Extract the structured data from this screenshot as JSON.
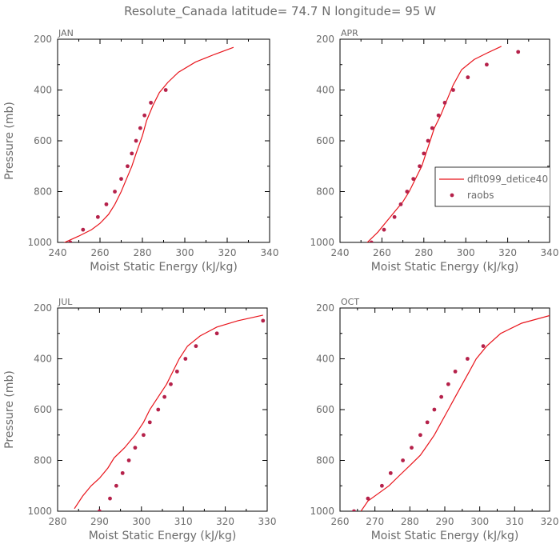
{
  "title": "Resolute_Canada  latitude= 74.7 N longitude= 95 W",
  "legend": {
    "entries": [
      "dflt099_detice40",
      "raobs"
    ],
    "placement": "right"
  },
  "colors": {
    "model": "#e8141b",
    "raobs": "#b5214a",
    "axis": "#000000",
    "text": "#6b6b6b"
  },
  "chart_data": [
    {
      "type": "line",
      "panel_label": "JAN",
      "xlabel": "Moist Static Energy (kJ/kg)",
      "ylabel": "Pressure (mb)",
      "xlim": [
        240,
        340
      ],
      "ylim": [
        1000,
        200
      ],
      "xticks": [
        240,
        260,
        280,
        300,
        320,
        340
      ],
      "yticks": [
        200,
        400,
        600,
        800,
        1000
      ],
      "series": [
        {
          "name": "dflt099_detice40",
          "style": "line",
          "points": [
            [
              242,
              1005
            ],
            [
              250,
              975
            ],
            [
              256,
              950
            ],
            [
              260,
              925
            ],
            [
              264,
              890
            ],
            [
              267,
              850
            ],
            [
              270,
              800
            ],
            [
              272,
              760
            ],
            [
              275,
              700
            ],
            [
              277,
              650
            ],
            [
              280,
              580
            ],
            [
              282,
              520
            ],
            [
              285,
              460
            ],
            [
              288,
              410
            ],
            [
              292,
              370
            ],
            [
              297,
              330
            ],
            [
              305,
              290
            ],
            [
              314,
              260
            ],
            [
              323,
              232
            ]
          ]
        },
        {
          "name": "raobs",
          "style": "markers",
          "points": [
            [
              246,
              1000
            ],
            [
              252,
              950
            ],
            [
              259,
              900
            ],
            [
              263,
              850
            ],
            [
              267,
              800
            ],
            [
              270,
              750
            ],
            [
              273,
              700
            ],
            [
              275,
              650
            ],
            [
              277,
              600
            ],
            [
              279,
              550
            ],
            [
              281,
              500
            ],
            [
              284,
              450
            ],
            [
              291,
              400
            ]
          ]
        }
      ]
    },
    {
      "type": "line",
      "panel_label": "APR",
      "xlabel": "Moist Static Energy (kJ/kg)",
      "ylabel": "",
      "xlim": [
        240,
        340
      ],
      "ylim": [
        1000,
        200
      ],
      "xticks": [
        240,
        260,
        280,
        300,
        320,
        340
      ],
      "yticks": [
        200,
        400,
        600,
        800,
        1000
      ],
      "series": [
        {
          "name": "dflt099_detice40",
          "style": "line",
          "points": [
            [
              253,
              1000
            ],
            [
              258,
              960
            ],
            [
              262,
              920
            ],
            [
              266,
              880
            ],
            [
              270,
              840
            ],
            [
              273,
              800
            ],
            [
              276,
              750
            ],
            [
              279,
              700
            ],
            [
              281,
              650
            ],
            [
              283,
              600
            ],
            [
              285,
              550
            ],
            [
              288,
              500
            ],
            [
              291,
              440
            ],
            [
              294,
              380
            ],
            [
              298,
              320
            ],
            [
              304,
              280
            ],
            [
              310,
              255
            ],
            [
              317,
              228
            ]
          ]
        },
        {
          "name": "raobs",
          "style": "markers",
          "points": [
            [
              255,
              1000
            ],
            [
              261,
              950
            ],
            [
              266,
              900
            ],
            [
              269,
              850
            ],
            [
              272,
              800
            ],
            [
              275,
              750
            ],
            [
              278,
              700
            ],
            [
              280,
              650
            ],
            [
              282,
              600
            ],
            [
              284,
              550
            ],
            [
              287,
              500
            ],
            [
              290,
              450
            ],
            [
              294,
              400
            ],
            [
              301,
              350
            ],
            [
              310,
              300
            ],
            [
              325,
              250
            ]
          ]
        }
      ]
    },
    {
      "type": "line",
      "panel_label": "JUL",
      "xlabel": "Moist Static Energy (kJ/kg)",
      "ylabel": "Pressure (mb)",
      "xlim": [
        280,
        330
      ],
      "ylim": [
        1000,
        200
      ],
      "xticks": [
        280,
        290,
        300,
        310,
        320,
        330
      ],
      "yticks": [
        200,
        400,
        600,
        800,
        1000
      ],
      "series": [
        {
          "name": "dflt099_detice40",
          "style": "line",
          "points": [
            [
              284,
              990
            ],
            [
              286,
              940
            ],
            [
              288,
              900
            ],
            [
              290,
              870
            ],
            [
              292,
              830
            ],
            [
              293.5,
              790
            ],
            [
              296,
              750
            ],
            [
              298.5,
              700
            ],
            [
              300.5,
              650
            ],
            [
              302,
              600
            ],
            [
              304,
              550
            ],
            [
              306,
              500
            ],
            [
              307.5,
              450
            ],
            [
              309,
              400
            ],
            [
              311,
              350
            ],
            [
              314,
              310
            ],
            [
              318,
              275
            ],
            [
              323,
              250
            ],
            [
              329,
              228
            ]
          ]
        },
        {
          "name": "raobs",
          "style": "markers",
          "points": [
            [
              290,
              1000
            ],
            [
              292.5,
              950
            ],
            [
              294,
              900
            ],
            [
              295.5,
              850
            ],
            [
              297,
              800
            ],
            [
              298.5,
              750
            ],
            [
              300.5,
              700
            ],
            [
              302,
              650
            ],
            [
              304,
              600
            ],
            [
              305.5,
              550
            ],
            [
              307,
              500
            ],
            [
              308.5,
              450
            ],
            [
              310.5,
              400
            ],
            [
              313,
              350
            ],
            [
              318,
              300
            ],
            [
              329,
              250
            ]
          ]
        }
      ]
    },
    {
      "type": "line",
      "panel_label": "OCT",
      "xlabel": "Moist Static Energy (kJ/kg)",
      "ylabel": "",
      "xlim": [
        260,
        320
      ],
      "ylim": [
        1000,
        200
      ],
      "xticks": [
        260,
        270,
        280,
        290,
        300,
        310,
        320
      ],
      "yticks": [
        200,
        400,
        600,
        800,
        1000
      ],
      "series": [
        {
          "name": "dflt099_detice40",
          "style": "line",
          "points": [
            [
              266,
              1000
            ],
            [
              268,
              960
            ],
            [
              271,
              930
            ],
            [
              274,
              900
            ],
            [
              277,
              860
            ],
            [
              280,
              820
            ],
            [
              283,
              780
            ],
            [
              285,
              740
            ],
            [
              287,
              700
            ],
            [
              289,
              650
            ],
            [
              291,
              600
            ],
            [
              293,
              550
            ],
            [
              295,
              500
            ],
            [
              297,
              450
            ],
            [
              299,
              400
            ],
            [
              302,
              350
            ],
            [
              306,
              300
            ],
            [
              312,
              260
            ],
            [
              320,
              230
            ]
          ]
        },
        {
          "name": "raobs",
          "style": "markers",
          "points": [
            [
              264,
              1000
            ],
            [
              268,
              950
            ],
            [
              272,
              900
            ],
            [
              274.5,
              850
            ],
            [
              278,
              800
            ],
            [
              280.5,
              750
            ],
            [
              283,
              700
            ],
            [
              285,
              650
            ],
            [
              287,
              600
            ],
            [
              289,
              550
            ],
            [
              291,
              500
            ],
            [
              293,
              450
            ],
            [
              296.5,
              400
            ],
            [
              301,
              350
            ]
          ]
        }
      ]
    }
  ]
}
